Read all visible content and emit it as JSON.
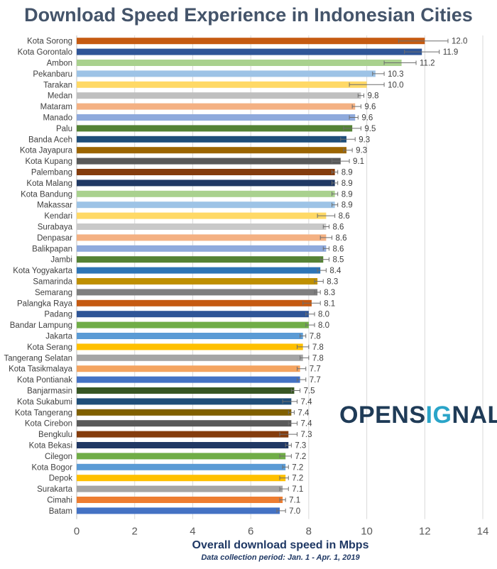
{
  "chart_data": {
    "type": "bar",
    "orientation": "horizontal",
    "title": "Download Speed Experience in Indonesian Cities",
    "xlabel": "Overall download speed in Mbps",
    "note": "Data collection period: Jan. 1 - Apr. 1, 2019",
    "xlim": [
      0,
      14
    ],
    "xticks": [
      0,
      2,
      4,
      6,
      8,
      10,
      12,
      14
    ],
    "grid": true,
    "error_bars": true,
    "categories": [
      "Kota Sorong",
      "Kota Gorontalo",
      "Ambon",
      "Pekanbaru",
      "Tarakan",
      "Medan",
      "Mataram",
      "Manado",
      "Palu",
      "Banda Aceh",
      "Kota Jayapura",
      "Kota Kupang",
      "Palembang",
      "Kota Malang",
      "Kota Bandung",
      "Makassar",
      "Kendari",
      "Surabaya",
      "Denpasar",
      "Balikpapan",
      "Jambi",
      "Kota Yogyakarta",
      "Samarinda",
      "Semarang",
      "Palangka Raya",
      "Padang",
      "Bandar Lampung",
      "Jakarta",
      "Kota Serang",
      "Tangerang Selatan",
      "Kota Tasikmalaya",
      "Kota Pontianak",
      "Banjarmasin",
      "Kota Sukabumi",
      "Kota Tangerang",
      "Kota Cirebon",
      "Bengkulu",
      "Kota Bekasi",
      "Cilegon",
      "Kota Bogor",
      "Depok",
      "Surakarta",
      "Cimahi",
      "Batam"
    ],
    "values": [
      12.0,
      11.9,
      11.2,
      10.3,
      10.0,
      9.8,
      9.6,
      9.6,
      9.5,
      9.3,
      9.3,
      9.1,
      8.9,
      8.9,
      8.9,
      8.9,
      8.6,
      8.6,
      8.6,
      8.6,
      8.5,
      8.4,
      8.3,
      8.3,
      8.1,
      8.0,
      8.0,
      7.8,
      7.8,
      7.8,
      7.7,
      7.7,
      7.5,
      7.4,
      7.4,
      7.4,
      7.3,
      7.3,
      7.2,
      7.2,
      7.2,
      7.1,
      7.1,
      7.0
    ],
    "value_labels": [
      "12.0",
      "11.9",
      "11.2",
      "10.3",
      "10.0",
      "9.8",
      "9.6",
      "9.6",
      "9.5",
      "9.3",
      "9.3",
      "9.1",
      "8.9",
      "8.9",
      "8.9",
      "8.9",
      "8.6",
      "8.6",
      "8.6",
      "8.6",
      "8.5",
      "8.4",
      "8.3",
      "8.3",
      "8.1",
      "8.0",
      "8.0",
      "7.8",
      "7.8",
      "7.8",
      "7.7",
      "7.7",
      "7.5",
      "7.4",
      "7.4",
      "7.4",
      "7.3",
      "7.3",
      "7.2",
      "7.2",
      "7.2",
      "7.1",
      "7.1",
      "7.0"
    ],
    "error_low": [
      11.1,
      11.3,
      10.6,
      10.2,
      9.4,
      9.7,
      9.5,
      9.4,
      9.2,
      9.1,
      9.2,
      8.8,
      8.8,
      8.8,
      8.8,
      8.8,
      8.3,
      8.5,
      8.4,
      8.5,
      8.4,
      8.3,
      8.2,
      8.2,
      7.8,
      7.9,
      7.9,
      7.7,
      7.6,
      7.7,
      7.6,
      7.6,
      7.4,
      7.1,
      7.3,
      7.3,
      7.0,
      7.2,
      7.0,
      7.1,
      7.0,
      7.0,
      7.0,
      6.9
    ],
    "error_high": [
      12.8,
      12.5,
      11.7,
      10.6,
      10.6,
      9.9,
      9.8,
      9.7,
      9.8,
      9.6,
      9.5,
      9.4,
      9.0,
      9.0,
      9.0,
      9.0,
      8.9,
      8.7,
      8.8,
      8.7,
      8.7,
      8.6,
      8.5,
      8.4,
      8.4,
      8.2,
      8.2,
      7.9,
      8.0,
      8.0,
      7.9,
      7.9,
      7.7,
      7.6,
      7.5,
      7.6,
      7.6,
      7.4,
      7.4,
      7.3,
      7.3,
      7.3,
      7.2,
      7.2
    ],
    "colors": [
      "#c55a11",
      "#2f5597",
      "#a9d18e",
      "#9dc3e6",
      "#ffd966",
      "#bfbfbf",
      "#f4b183",
      "#8faadc",
      "#548235",
      "#1f4e79",
      "#9c6500",
      "#595959",
      "#843c0c",
      "#203864",
      "#a9d18e",
      "#9dc3e6",
      "#ffd966",
      "#c9c9c9",
      "#f4b183",
      "#8faadc",
      "#548235",
      "#2e75b6",
      "#bf9000",
      "#7f7f7f",
      "#c55a11",
      "#2f5597",
      "#70ad47",
      "#5b9bd5",
      "#ffc000",
      "#a5a5a5",
      "#f4a460",
      "#4472c4",
      "#375623",
      "#1f4e79",
      "#806000",
      "#595959",
      "#843c0c",
      "#203864",
      "#70ad47",
      "#5b9bd5",
      "#ffc000",
      "#a5a5a5",
      "#ed7d31",
      "#4472c4"
    ]
  },
  "logo": {
    "part1": "OPENS",
    "part2": "IG",
    "part3": "NAL"
  }
}
